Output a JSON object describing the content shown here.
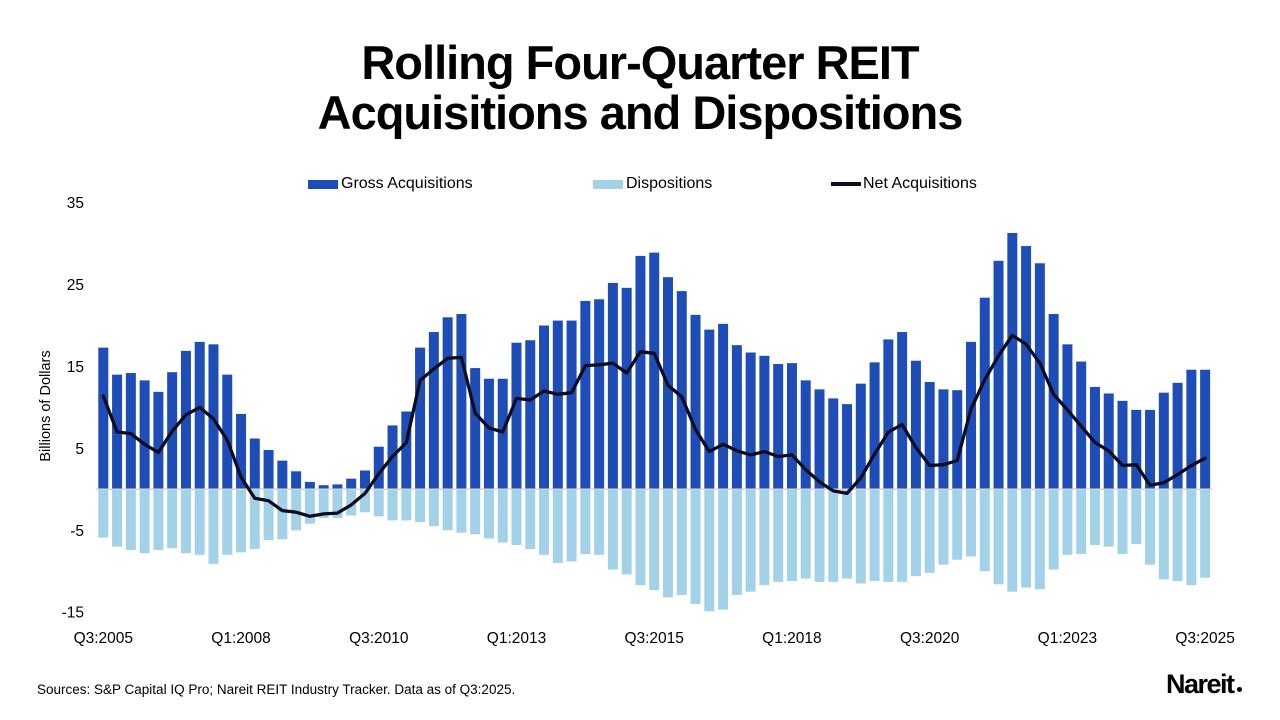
{
  "title": {
    "line1": "Rolling Four-Quarter REIT",
    "line2": "Acquisitions and Dispositions"
  },
  "legend": [
    {
      "label": "Gross Acquisitions",
      "type": "bar",
      "color": "#1E4DB7"
    },
    {
      "label": "Dispositions",
      "type": "bar",
      "color": "#A3D2E8"
    },
    {
      "label": "Net Acquisitions",
      "type": "line",
      "color": "#0D0D1F"
    }
  ],
  "source_note": "Sources: S&P Capital IQ Pro; Nareit REIT Industry Tracker. Data as of Q3:2025.",
  "logo": {
    "text": "Nareit"
  },
  "chart_data": {
    "type": "bar",
    "title": "Rolling Four-Quarter REIT Acquisitions and Dispositions",
    "xlabel": "",
    "ylabel": "Billions of Dollars",
    "ylim": [
      -15,
      35
    ],
    "y_ticks": [
      35,
      25,
      15,
      5,
      -5,
      -15
    ],
    "grid": false,
    "legend_position": "top",
    "zero_line_color": "#D6D6D6",
    "n_points": 81,
    "x_start": "Q3:2005",
    "x_end": "Q3:2025",
    "frequency": "quarterly",
    "x_tick_labels": [
      "Q3:2005",
      "Q1:2008",
      "Q3:2010",
      "Q1:2013",
      "Q3:2015",
      "Q1:2018",
      "Q3:2020",
      "Q1:2023",
      "Q3:2025"
    ],
    "x_tick_indices": [
      0,
      10,
      20,
      30,
      40,
      50,
      60,
      70,
      80
    ],
    "series": [
      {
        "name": "Gross Acquisitions",
        "type": "bar",
        "color": "#1E4DB7",
        "values": [
          17.3,
          14.0,
          14.2,
          13.3,
          11.9,
          14.3,
          16.9,
          18.0,
          17.7,
          14.0,
          9.2,
          6.2,
          4.8,
          3.5,
          2.2,
          0.9,
          0.5,
          0.6,
          1.3,
          2.3,
          5.2,
          7.8,
          9.5,
          17.3,
          19.2,
          21.0,
          21.4,
          14.8,
          13.5,
          13.5,
          17.9,
          18.2,
          20.0,
          20.6,
          20.6,
          23.0,
          23.2,
          25.2,
          24.6,
          28.5,
          28.9,
          25.9,
          24.2,
          21.3,
          19.5,
          20.2,
          17.6,
          16.7,
          16.3,
          15.3,
          15.4,
          13.3,
          12.2,
          11.1,
          10.4,
          12.9,
          15.5,
          18.3,
          19.2,
          15.7,
          13.1,
          12.2,
          12.1,
          18.0,
          23.4,
          27.9,
          31.3,
          29.7,
          27.6,
          21.4,
          17.7,
          15.6,
          12.5,
          11.7,
          10.8,
          9.7,
          9.7,
          11.8,
          13.0,
          14.6,
          14.6
        ]
      },
      {
        "name": "Dispositions",
        "type": "bar",
        "color": "#A3D2E8",
        "values": [
          -5.9,
          -7.0,
          -7.4,
          -7.8,
          -7.4,
          -7.2,
          -7.8,
          -8.0,
          -9.1,
          -8.0,
          -7.7,
          -7.3,
          -6.2,
          -6.1,
          -5.0,
          -4.2,
          -3.5,
          -3.5,
          -3.2,
          -2.8,
          -3.3,
          -3.8,
          -3.8,
          -4.0,
          -4.5,
          -5.0,
          -5.3,
          -5.5,
          -6.0,
          -6.5,
          -6.8,
          -7.3,
          -8.0,
          -9.0,
          -8.8,
          -7.9,
          -8.0,
          -9.8,
          -10.4,
          -11.7,
          -12.3,
          -13.2,
          -12.9,
          -14.0,
          -14.9,
          -14.7,
          -12.9,
          -12.5,
          -11.7,
          -11.3,
          -11.2,
          -10.9,
          -11.3,
          -11.3,
          -10.9,
          -11.5,
          -11.2,
          -11.3,
          -11.3,
          -10.6,
          -10.2,
          -9.2,
          -8.6,
          -8.2,
          -10.0,
          -11.6,
          -12.5,
          -12.0,
          -12.2,
          -9.8,
          -8.0,
          -7.9,
          -6.8,
          -7.0,
          -7.9,
          -6.7,
          -9.2,
          -11.0,
          -11.2,
          -11.7,
          -10.8
        ]
      },
      {
        "name": "Net Acquisitions",
        "type": "line",
        "color": "#0D0D1F",
        "values": [
          11.4,
          7.0,
          6.8,
          5.5,
          4.5,
          7.1,
          9.1,
          10.0,
          8.6,
          6.0,
          1.5,
          -1.1,
          -1.4,
          -2.6,
          -2.8,
          -3.3,
          -3.0,
          -2.9,
          -1.9,
          -0.5,
          1.9,
          4.0,
          5.7,
          13.3,
          14.7,
          16.0,
          16.1,
          9.3,
          7.5,
          7.0,
          11.1,
          10.9,
          12.0,
          11.6,
          11.8,
          15.1,
          15.2,
          15.4,
          14.2,
          16.8,
          16.6,
          12.7,
          11.3,
          7.3,
          4.6,
          5.5,
          4.7,
          4.2,
          4.6,
          4.0,
          4.2,
          2.4,
          0.9,
          -0.2,
          -0.5,
          1.4,
          4.3,
          7.0,
          7.9,
          5.1,
          2.9,
          3.0,
          3.5,
          9.8,
          13.4,
          16.3,
          18.8,
          17.7,
          15.4,
          11.6,
          9.7,
          7.7,
          5.7,
          4.7,
          2.9,
          3.0,
          0.5,
          0.8,
          1.8,
          2.9,
          3.8
        ]
      }
    ]
  }
}
